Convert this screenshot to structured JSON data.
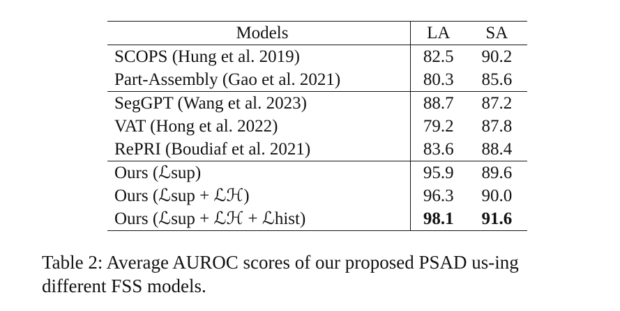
{
  "table": {
    "headers": [
      "Models",
      "LA",
      "SA"
    ],
    "groups": [
      [
        {
          "model": "SCOPS (Hung et al. 2019)",
          "la": "82.5",
          "sa": "90.2"
        },
        {
          "model": "Part-Assembly (Gao et al. 2021)",
          "la": "80.3",
          "sa": "85.6"
        }
      ],
      [
        {
          "model": "SegGPT (Wang et al. 2023)",
          "la": "88.7",
          "sa": "87.2"
        },
        {
          "model": "VAT (Hong et al. 2022)",
          "la": "79.2",
          "sa": "87.8"
        },
        {
          "model": "RePRI (Boudiaf et al. 2021)",
          "la": "83.6",
          "sa": "88.4"
        }
      ],
      [
        {
          "model": "Ours (ℒsup)",
          "la": "95.9",
          "sa": "89.6"
        },
        {
          "model": "Ours (ℒsup + ℒℋ)",
          "la": "96.3",
          "sa": "90.0"
        },
        {
          "model": "Ours (ℒsup + ℒℋ + ℒhist)",
          "la": "98.1",
          "sa": "91.6",
          "bold": true
        }
      ]
    ]
  },
  "caption": "Table 2: Average AUROC scores of our proposed PSAD us-ing different FSS models."
}
